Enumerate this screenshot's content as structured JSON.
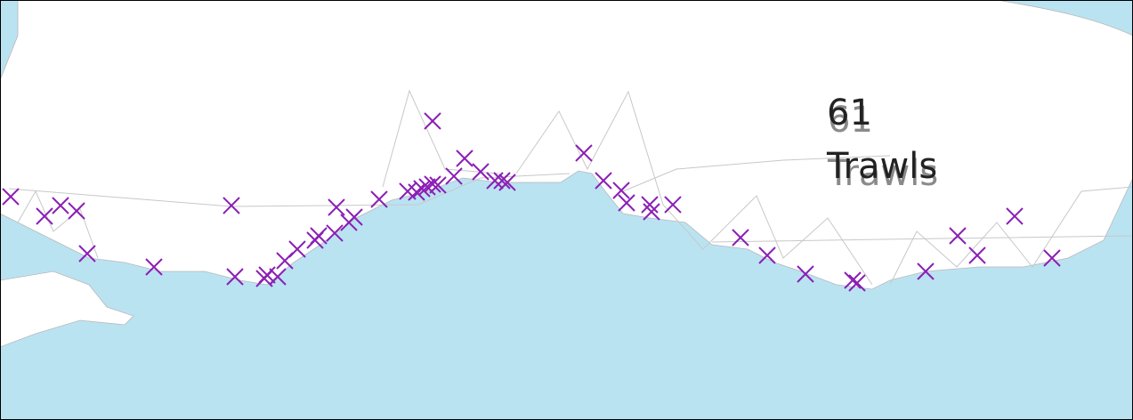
{
  "label": {
    "count": 61,
    "unit": "Trawls"
  }
}
